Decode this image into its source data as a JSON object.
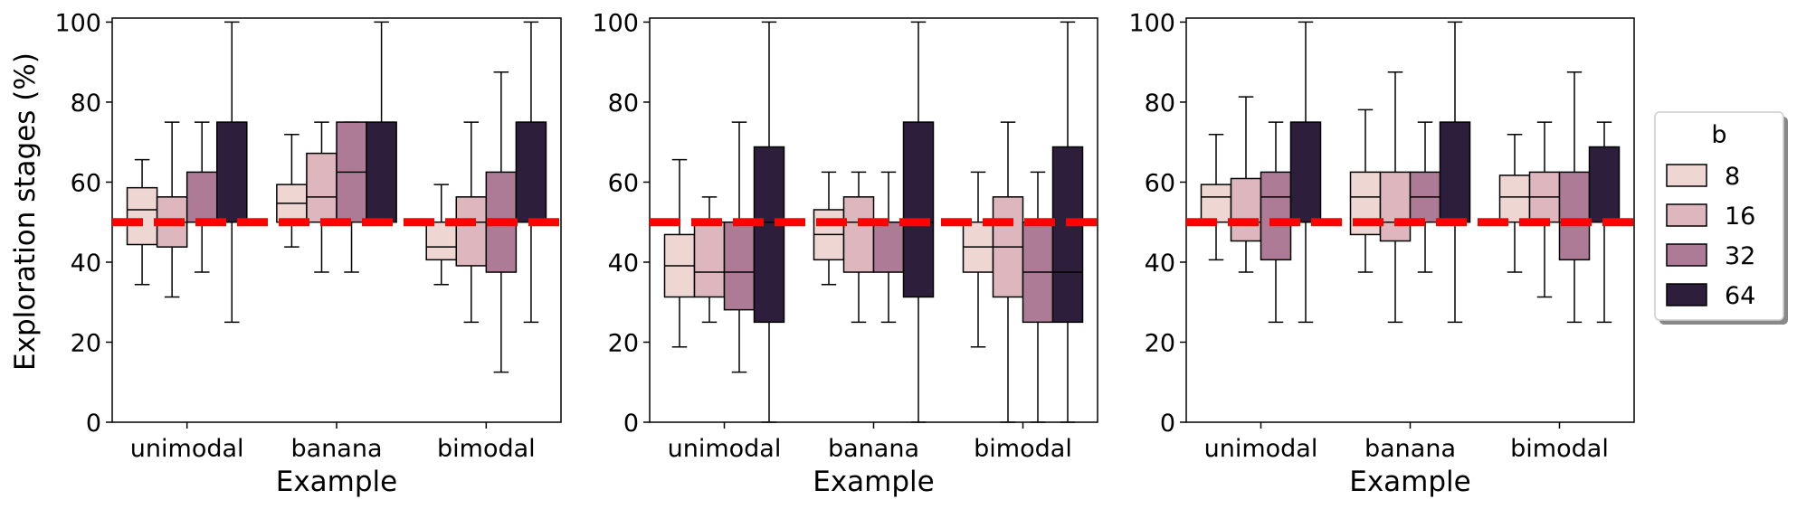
{
  "figure": {
    "ylabel": "Exploration stages (%)"
  },
  "chart_data": [
    {
      "type": "box",
      "title": "",
      "xlabel": "Example",
      "ylabel": "Exploration stages (%)",
      "ylim": [
        0,
        101
      ],
      "yticks": [
        "0",
        "20",
        "40",
        "60",
        "80",
        "100"
      ],
      "categories": [
        "unimodal",
        "banana",
        "bimodal"
      ],
      "hue_order": [
        "8",
        "16",
        "32",
        "64"
      ],
      "reference_line": 50,
      "boxes": [
        [
          {
            "whislo": 34.4,
            "q1": 44.4,
            "med": 53.1,
            "q3": 58.6,
            "whishi": 65.6
          },
          {
            "whislo": 31.3,
            "q1": 43.8,
            "med": 50.0,
            "q3": 56.3,
            "whishi": 75.0
          },
          {
            "whislo": 37.5,
            "q1": 50.0,
            "med": 50.0,
            "q3": 62.5,
            "whishi": 75.0
          },
          {
            "whislo": 25.0,
            "q1": 50.0,
            "med": 50.0,
            "q3": 75.0,
            "whishi": 100.0
          }
        ],
        [
          {
            "whislo": 43.8,
            "q1": 50.0,
            "med": 54.7,
            "q3": 59.4,
            "whishi": 71.9
          },
          {
            "whislo": 37.5,
            "q1": 50.0,
            "med": 56.3,
            "q3": 67.2,
            "whishi": 75.0
          },
          {
            "whislo": 37.5,
            "q1": 50.0,
            "med": 62.5,
            "q3": 75.0,
            "whishi": 75.0
          },
          {
            "whislo": 50.0,
            "q1": 50.0,
            "med": 50.0,
            "q3": 75.0,
            "whishi": 100.0
          }
        ],
        [
          {
            "whislo": 34.4,
            "q1": 40.6,
            "med": 43.8,
            "q3": 50.0,
            "whishi": 59.4
          },
          {
            "whislo": 25.0,
            "q1": 39.1,
            "med": 50.0,
            "q3": 56.3,
            "whishi": 75.0
          },
          {
            "whislo": 12.5,
            "q1": 37.5,
            "med": 50.0,
            "q3": 62.5,
            "whishi": 87.5
          },
          {
            "whislo": 25.0,
            "q1": 50.0,
            "med": 50.0,
            "q3": 75.0,
            "whishi": 100.0
          }
        ]
      ]
    },
    {
      "type": "box",
      "title": "",
      "xlabel": "Example",
      "ylabel": "",
      "ylim": [
        0,
        101
      ],
      "yticks": [
        "0",
        "20",
        "40",
        "60",
        "80",
        "100"
      ],
      "categories": [
        "unimodal",
        "banana",
        "bimodal"
      ],
      "hue_order": [
        "8",
        "16",
        "32",
        "64"
      ],
      "reference_line": 50,
      "boxes": [
        [
          {
            "whislo": 18.8,
            "q1": 31.3,
            "med": 39.1,
            "q3": 46.9,
            "whishi": 65.6
          },
          {
            "whislo": 25.0,
            "q1": 31.3,
            "med": 37.5,
            "q3": 50.0,
            "whishi": 56.3
          },
          {
            "whislo": 12.5,
            "q1": 28.1,
            "med": 37.5,
            "q3": 50.0,
            "whishi": 75.0
          },
          {
            "whislo": 0.0,
            "q1": 25.0,
            "med": 50.0,
            "q3": 68.8,
            "whishi": 100.0
          }
        ],
        [
          {
            "whislo": 34.4,
            "q1": 40.6,
            "med": 46.9,
            "q3": 53.1,
            "whishi": 62.5
          },
          {
            "whislo": 25.0,
            "q1": 37.5,
            "med": 50.0,
            "q3": 56.3,
            "whishi": 62.5
          },
          {
            "whislo": 25.0,
            "q1": 37.5,
            "med": 50.0,
            "q3": 50.0,
            "whishi": 62.5
          },
          {
            "whislo": 0.0,
            "q1": 31.3,
            "med": 50.0,
            "q3": 75.0,
            "whishi": 100.0
          }
        ],
        [
          {
            "whislo": 18.8,
            "q1": 37.5,
            "med": 43.8,
            "q3": 50.0,
            "whishi": 62.5
          },
          {
            "whislo": 0.0,
            "q1": 31.3,
            "med": 43.8,
            "q3": 56.3,
            "whishi": 75.0
          },
          {
            "whislo": 0.0,
            "q1": 25.0,
            "med": 37.5,
            "q3": 50.0,
            "whishi": 62.5
          },
          {
            "whislo": 0.0,
            "q1": 25.0,
            "med": 37.5,
            "q3": 68.8,
            "whishi": 100.0
          }
        ]
      ]
    },
    {
      "type": "box",
      "title": "",
      "xlabel": "Example",
      "ylabel": "",
      "ylim": [
        0,
        101
      ],
      "yticks": [
        "0",
        "20",
        "40",
        "60",
        "80",
        "100"
      ],
      "categories": [
        "unimodal",
        "banana",
        "bimodal"
      ],
      "hue_order": [
        "8",
        "16",
        "32",
        "64"
      ],
      "reference_line": 50,
      "boxes": [
        [
          {
            "whislo": 40.6,
            "q1": 50.0,
            "med": 56.3,
            "q3": 59.4,
            "whishi": 71.9
          },
          {
            "whislo": 37.5,
            "q1": 45.3,
            "med": 50.0,
            "q3": 60.9,
            "whishi": 81.3
          },
          {
            "whislo": 25.0,
            "q1": 40.6,
            "med": 56.3,
            "q3": 62.5,
            "whishi": 75.0
          },
          {
            "whislo": 25.0,
            "q1": 50.0,
            "med": 50.0,
            "q3": 75.0,
            "whishi": 100.0
          }
        ],
        [
          {
            "whislo": 37.5,
            "q1": 46.9,
            "med": 56.3,
            "q3": 62.5,
            "whishi": 78.1
          },
          {
            "whislo": 25.0,
            "q1": 45.3,
            "med": 50.0,
            "q3": 62.5,
            "whishi": 87.5
          },
          {
            "whislo": 37.5,
            "q1": 50.0,
            "med": 56.3,
            "q3": 62.5,
            "whishi": 75.0
          },
          {
            "whislo": 25.0,
            "q1": 50.0,
            "med": 50.0,
            "q3": 75.0,
            "whishi": 100.0
          }
        ],
        [
          {
            "whislo": 37.5,
            "q1": 50.0,
            "med": 56.3,
            "q3": 61.7,
            "whishi": 71.9
          },
          {
            "whislo": 31.3,
            "q1": 50.0,
            "med": 56.3,
            "q3": 62.5,
            "whishi": 75.0
          },
          {
            "whislo": 25.0,
            "q1": 40.6,
            "med": 50.0,
            "q3": 62.5,
            "whishi": 87.5
          },
          {
            "whislo": 25.0,
            "q1": 50.0,
            "med": 50.0,
            "q3": 68.8,
            "whishi": 75.0
          }
        ]
      ]
    }
  ],
  "legend": {
    "title": "b",
    "placement": "right",
    "entries": [
      {
        "label": "8",
        "color": "#eed6d2"
      },
      {
        "label": "16",
        "color": "#deb6bd"
      },
      {
        "label": "32",
        "color": "#ae7b96"
      },
      {
        "label": "64",
        "color": "#2d1f3c"
      }
    ]
  },
  "colors": {
    "reference_line": "#ff0000",
    "edge": "#000000",
    "background": "#ffffff"
  }
}
